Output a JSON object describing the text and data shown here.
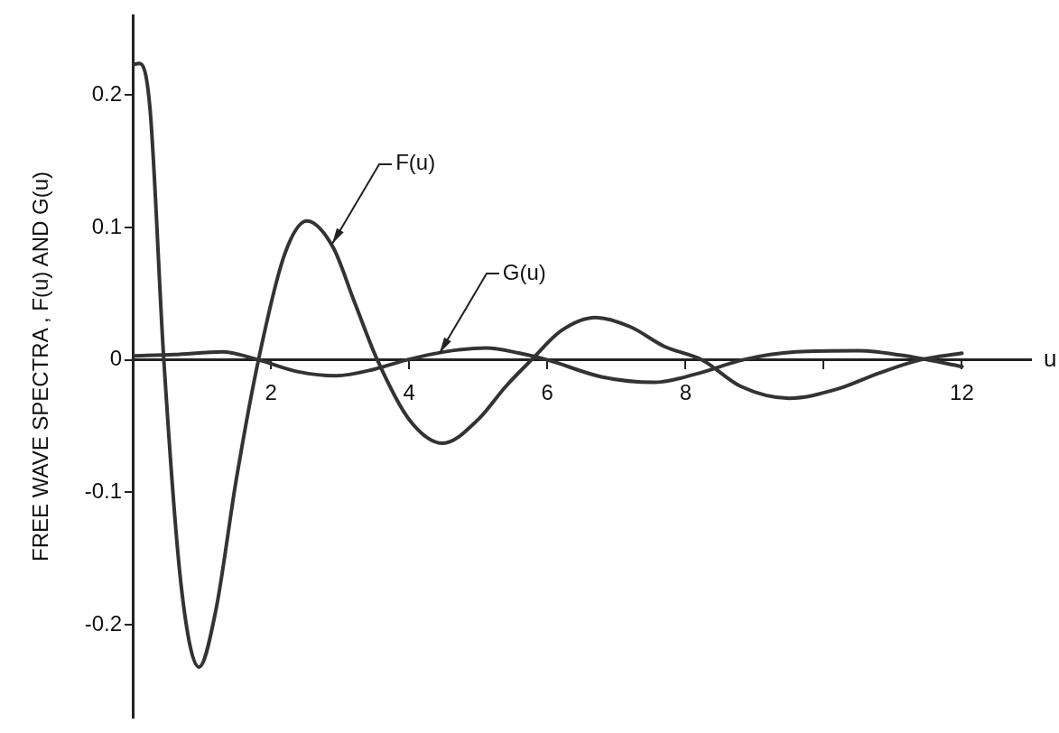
{
  "chart_data": {
    "type": "line",
    "xlabel": "u",
    "ylabel": "FREE WAVE SPECTRA , F(u) AND G(u)",
    "xlim": [
      0,
      13
    ],
    "xticks": [
      2,
      4,
      6,
      8,
      {
        "value": 10,
        "label": null
      },
      12
    ],
    "ylim": [
      -0.27,
      0.26
    ],
    "yticks": [
      -0.2,
      -0.1,
      0,
      0.1,
      0.2
    ],
    "grid": false,
    "legend": false,
    "marker": "none",
    "line_style": "solid",
    "series": [
      {
        "color": "#333333",
        "x": [
          0,
          0.1,
          0.25,
          0.45,
          0.7,
          0.96,
          1.2,
          1.5,
          1.82,
          2.2,
          2.52,
          2.9,
          3.2,
          3.54,
          4.0,
          4.49,
          5.0,
          5.4,
          5.77,
          6.2,
          6.7,
          7.2,
          7.7,
          8.24,
          8.8,
          9.5,
          10.2,
          10.8,
          11.4,
          12.0
        ],
        "values": [
          0.223,
          0.224,
          0.19,
          0,
          -0.17,
          -0.232,
          -0.19,
          -0.09,
          0,
          0.08,
          0.105,
          0.085,
          0.045,
          0,
          -0.045,
          -0.063,
          -0.045,
          -0.02,
          0,
          0.022,
          0.032,
          0.025,
          0.01,
          0,
          -0.02,
          -0.029,
          -0.022,
          -0.01,
          0,
          0.005
        ]
      },
      {
        "color": "#333333",
        "x": [
          0,
          0.6,
          1.3,
          1.82,
          2.4,
          2.94,
          3.5,
          3.97,
          4.5,
          5.12,
          5.6,
          6.0,
          6.8,
          7.55,
          8.2,
          8.83,
          9.6,
          10.5,
          11.3,
          12.0
        ],
        "values": [
          0.003,
          0.004,
          0.006,
          0,
          -0.009,
          -0.012,
          -0.007,
          0,
          0.006,
          0.009,
          0.005,
          0,
          -0.013,
          -0.017,
          -0.01,
          0,
          0.006,
          0.007,
          0.002,
          -0.005
        ]
      }
    ],
    "annotations": [
      {
        "text": "F(u)",
        "x": 2.89,
        "y": 0.088
      },
      {
        "text": "G(u)",
        "x": 4.44,
        "y": 0.005
      }
    ]
  }
}
